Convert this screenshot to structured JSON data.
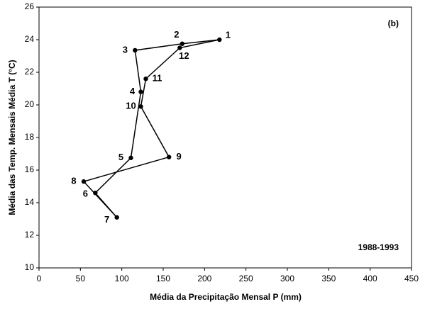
{
  "chart_data": {
    "type": "line",
    "x_label": "Média da Precipitação Mensal P (mm)",
    "y_label": "Média das Temp. Mensais Média T (°C)",
    "annotations": [
      "(b)",
      "1988-1993"
    ],
    "x": [
      218,
      173,
      116,
      123,
      111,
      68,
      94,
      54,
      157,
      123,
      129,
      170
    ],
    "series": [
      {
        "color": "#000000",
        "values": [
          24.0,
          23.75,
          23.35,
          20.8,
          16.75,
          14.6,
          13.1,
          15.3,
          16.8,
          19.9,
          21.6,
          23.5
        ]
      }
    ],
    "point_labels": [
      "1",
      "2",
      "3",
      "4",
      "5",
      "6",
      "7",
      "8",
      "9",
      "10",
      "11",
      "12"
    ],
    "xlim": [
      0,
      450
    ],
    "xticks": [
      0,
      50,
      100,
      150,
      200,
      250,
      300,
      350,
      400,
      450
    ],
    "ylim": [
      10,
      26
    ],
    "yticks": [
      10,
      12,
      14,
      16,
      18,
      20,
      22,
      24,
      26
    ]
  }
}
